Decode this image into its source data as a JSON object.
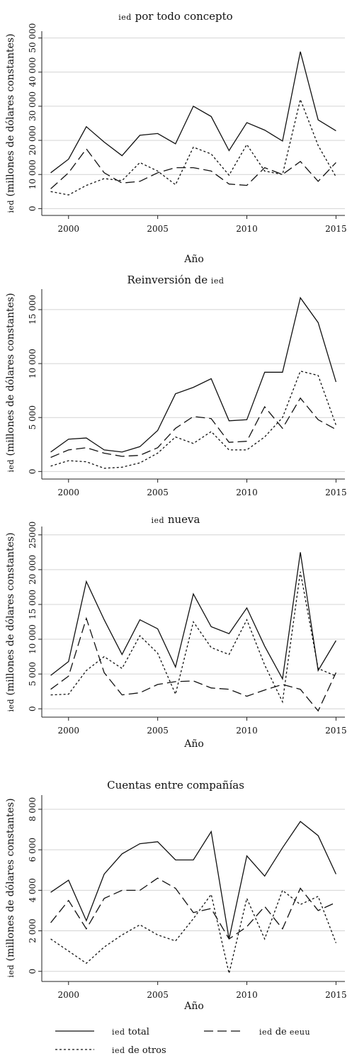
{
  "chart_data": [
    {
      "type": "line",
      "title_sc": "ied",
      "title": "por todo concepto",
      "xlabel": "Año",
      "ylabel_sc": "ied",
      "ylabel": "(millones de dólares constantes)",
      "x": [
        1999,
        2000,
        2001,
        2002,
        2003,
        2004,
        2005,
        2006,
        2007,
        2008,
        2009,
        2010,
        2011,
        2012,
        2013,
        2014,
        2015
      ],
      "xticks": [
        "2000",
        "2005",
        "2010",
        "2015"
      ],
      "yticks": [
        0,
        10000,
        20000,
        30000,
        40000,
        50000
      ],
      "ytick_labels": [
        "0",
        "10 000",
        "20 000",
        "30 000",
        "40 000",
        "50 000"
      ],
      "ylim": [
        -2000,
        52000
      ],
      "grid": true,
      "series": [
        {
          "key": "total",
          "values": [
            10500,
            14500,
            24000,
            19500,
            15500,
            21500,
            22000,
            19000,
            30000,
            27000,
            17000,
            25200,
            23000,
            19800,
            46000,
            26000,
            22800
          ]
        },
        {
          "key": "eeuu",
          "values": [
            5800,
            10500,
            17500,
            10500,
            7500,
            8000,
            10500,
            12000,
            12000,
            11000,
            7200,
            6800,
            12000,
            10000,
            13800,
            8000,
            13500
          ]
        },
        {
          "key": "otros",
          "values": [
            5000,
            4000,
            6800,
            8800,
            8200,
            13500,
            11000,
            7000,
            18000,
            16000,
            9800,
            18800,
            11000,
            10000,
            32000,
            18500,
            9300
          ]
        }
      ]
    },
    {
      "type": "line",
      "title": "Reinversión de",
      "title_sc_after": "ied",
      "xlabel": "",
      "ylabel_sc": "ied",
      "ylabel": "(millones de dólares constantes)",
      "x": [
        1999,
        2000,
        2001,
        2002,
        2003,
        2004,
        2005,
        2006,
        2007,
        2008,
        2009,
        2010,
        2011,
        2012,
        2013,
        2014,
        2015
      ],
      "xticks": [
        "2000",
        "2005",
        "2010",
        "2015"
      ],
      "yticks": [
        0,
        5000,
        10000,
        15000
      ],
      "ytick_labels": [
        "0",
        "5 000",
        "10 000",
        "15 000"
      ],
      "ylim": [
        -700,
        16900
      ],
      "grid": true,
      "series": [
        {
          "key": "total",
          "values": [
            1800,
            3000,
            3100,
            2000,
            1800,
            2300,
            3800,
            7200,
            7800,
            8600,
            4700,
            4800,
            9200,
            9200,
            16100,
            13800,
            8300
          ]
        },
        {
          "key": "eeuu",
          "values": [
            1300,
            2000,
            2200,
            1700,
            1400,
            1500,
            2200,
            4000,
            5100,
            4900,
            2700,
            2800,
            6000,
            4000,
            6800,
            4800,
            3900
          ]
        },
        {
          "key": "otros",
          "values": [
            500,
            1000,
            900,
            300,
            400,
            800,
            1700,
            3200,
            2600,
            3700,
            2000,
            2000,
            3200,
            5000,
            9300,
            8900,
            4300
          ]
        }
      ]
    },
    {
      "type": "line",
      "title_sc": "ied",
      "title": "nueva",
      "xlabel": "Año",
      "ylabel_sc": "ied",
      "ylabel": "(millones de dólares constantes)",
      "x": [
        1999,
        2000,
        2001,
        2002,
        2003,
        2004,
        2005,
        2006,
        2007,
        2008,
        2009,
        2010,
        2011,
        2012,
        2013,
        2014,
        2015
      ],
      "xticks": [
        "2000",
        "2005",
        "2010",
        "2015"
      ],
      "yticks": [
        0,
        5000,
        10000,
        15000,
        20000,
        25000
      ],
      "ytick_labels": [
        "0",
        "5 000",
        "10 000",
        "15 000",
        "20 000",
        "25000"
      ],
      "ylim": [
        -1200,
        26200
      ],
      "grid": true,
      "series": [
        {
          "key": "total",
          "values": [
            4800,
            6800,
            18300,
            12800,
            7800,
            12800,
            11500,
            6000,
            16500,
            11800,
            10800,
            14500,
            9000,
            4300,
            22500,
            5500,
            9800
          ]
        },
        {
          "key": "eeuu",
          "values": [
            2800,
            4700,
            13000,
            5200,
            2000,
            2300,
            3500,
            3900,
            4000,
            3000,
            2800,
            1800,
            2700,
            3500,
            2800,
            -300,
            5200
          ]
        },
        {
          "key": "otros",
          "values": [
            2000,
            2100,
            5500,
            7500,
            5800,
            10500,
            8000,
            2100,
            12500,
            8800,
            7800,
            12800,
            6300,
            1000,
            19700,
            5800,
            4700
          ]
        }
      ]
    },
    {
      "type": "line",
      "title": "Cuentas entre compañías",
      "xlabel": "Año",
      "ylabel_sc": "ied",
      "ylabel": "(millones de dólares constantes)",
      "x": [
        1999,
        2000,
        2001,
        2002,
        2003,
        2004,
        2005,
        2006,
        2007,
        2008,
        2009,
        2010,
        2011,
        2012,
        2013,
        2014,
        2015
      ],
      "xticks": [
        "2000",
        "2005",
        "2010",
        "2015"
      ],
      "yticks": [
        0,
        2000,
        4000,
        6000,
        8000
      ],
      "ytick_labels": [
        "0",
        "2 000",
        "4 000",
        "6 000",
        "8 000"
      ],
      "ylim": [
        -500,
        8700
      ],
      "grid": true,
      "series": [
        {
          "key": "total",
          "values": [
            3900,
            4500,
            2500,
            4800,
            5800,
            6300,
            6400,
            5500,
            5500,
            6900,
            1600,
            5700,
            4700,
            6100,
            7400,
            6700,
            4800
          ]
        },
        {
          "key": "eeuu",
          "values": [
            2400,
            3500,
            2100,
            3600,
            4000,
            4000,
            4600,
            4100,
            2900,
            3100,
            1600,
            2200,
            3200,
            2100,
            4100,
            3000,
            3400
          ]
        },
        {
          "key": "otros",
          "values": [
            1600,
            1000,
            400,
            1200,
            1800,
            2300,
            1800,
            1500,
            2600,
            3800,
            -100,
            3600,
            1600,
            4000,
            3300,
            3700,
            1400
          ]
        }
      ]
    }
  ],
  "legend": {
    "total": {
      "sc": "ied",
      "text": "total"
    },
    "eeuu": {
      "sc": "ied",
      "text": "de",
      "sc2": "eeuu"
    },
    "otros": {
      "sc": "ied",
      "text": "de otros"
    }
  }
}
